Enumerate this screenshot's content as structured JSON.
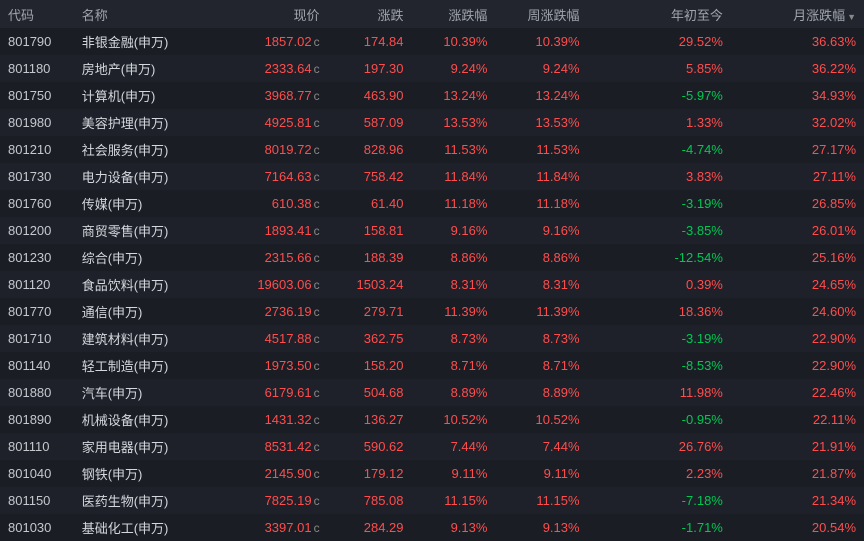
{
  "columns": [
    {
      "key": "code",
      "label": "代码",
      "align": "left"
    },
    {
      "key": "name",
      "label": "名称",
      "align": "left"
    },
    {
      "key": "price",
      "label": "现价",
      "align": "right"
    },
    {
      "key": "change",
      "label": "涨跌",
      "align": "right"
    },
    {
      "key": "change_pct",
      "label": "涨跌幅",
      "align": "right"
    },
    {
      "key": "week_pct",
      "label": "周涨跌幅",
      "align": "right"
    },
    {
      "key": "ytd_pct",
      "label": "年初至今",
      "align": "right"
    },
    {
      "key": "month_pct",
      "label": "月涨跌幅",
      "align": "right",
      "sorted": "desc"
    }
  ],
  "colors": {
    "up": "#ff4d4d",
    "down": "#00c853",
    "neutral": "#c5c8ce",
    "bg_odd": "#1a1d24",
    "bg_even": "#1e2129",
    "header_bg": "#22252d"
  },
  "rows": [
    {
      "code": "801790",
      "name": "非银金融(申万)",
      "price": "1857.02",
      "change": "174.84",
      "change_pct": "10.39%",
      "week_pct": "10.39%",
      "ytd_pct": "29.52%",
      "ytd_dir": "up",
      "month_pct": "36.63%"
    },
    {
      "code": "801180",
      "name": "房地产(申万)",
      "price": "2333.64",
      "change": "197.30",
      "change_pct": "9.24%",
      "week_pct": "9.24%",
      "ytd_pct": "5.85%",
      "ytd_dir": "up",
      "month_pct": "36.22%"
    },
    {
      "code": "801750",
      "name": "计算机(申万)",
      "price": "3968.77",
      "change": "463.90",
      "change_pct": "13.24%",
      "week_pct": "13.24%",
      "ytd_pct": "-5.97%",
      "ytd_dir": "down",
      "month_pct": "34.93%"
    },
    {
      "code": "801980",
      "name": "美容护理(申万)",
      "price": "4925.81",
      "change": "587.09",
      "change_pct": "13.53%",
      "week_pct": "13.53%",
      "ytd_pct": "1.33%",
      "ytd_dir": "up",
      "month_pct": "32.02%"
    },
    {
      "code": "801210",
      "name": "社会服务(申万)",
      "price": "8019.72",
      "change": "828.96",
      "change_pct": "11.53%",
      "week_pct": "11.53%",
      "ytd_pct": "-4.74%",
      "ytd_dir": "down",
      "month_pct": "27.17%"
    },
    {
      "code": "801730",
      "name": "电力设备(申万)",
      "price": "7164.63",
      "change": "758.42",
      "change_pct": "11.84%",
      "week_pct": "11.84%",
      "ytd_pct": "3.83%",
      "ytd_dir": "up",
      "month_pct": "27.11%"
    },
    {
      "code": "801760",
      "name": "传媒(申万)",
      "price": "610.38",
      "change": "61.40",
      "change_pct": "11.18%",
      "week_pct": "11.18%",
      "ytd_pct": "-3.19%",
      "ytd_dir": "down",
      "month_pct": "26.85%"
    },
    {
      "code": "801200",
      "name": "商贸零售(申万)",
      "price": "1893.41",
      "change": "158.81",
      "change_pct": "9.16%",
      "week_pct": "9.16%",
      "ytd_pct": "-3.85%",
      "ytd_dir": "down",
      "month_pct": "26.01%"
    },
    {
      "code": "801230",
      "name": "综合(申万)",
      "price": "2315.66",
      "change": "188.39",
      "change_pct": "8.86%",
      "week_pct": "8.86%",
      "ytd_pct": "-12.54%",
      "ytd_dir": "down",
      "month_pct": "25.16%"
    },
    {
      "code": "801120",
      "name": "食品饮料(申万)",
      "price": "19603.06",
      "change": "1503.24",
      "change_pct": "8.31%",
      "week_pct": "8.31%",
      "ytd_pct": "0.39%",
      "ytd_dir": "up",
      "month_pct": "24.65%"
    },
    {
      "code": "801770",
      "name": "通信(申万)",
      "price": "2736.19",
      "change": "279.71",
      "change_pct": "11.39%",
      "week_pct": "11.39%",
      "ytd_pct": "18.36%",
      "ytd_dir": "up",
      "month_pct": "24.60%"
    },
    {
      "code": "801710",
      "name": "建筑材料(申万)",
      "price": "4517.88",
      "change": "362.75",
      "change_pct": "8.73%",
      "week_pct": "8.73%",
      "ytd_pct": "-3.19%",
      "ytd_dir": "down",
      "month_pct": "22.90%"
    },
    {
      "code": "801140",
      "name": "轻工制造(申万)",
      "price": "1973.50",
      "change": "158.20",
      "change_pct": "8.71%",
      "week_pct": "8.71%",
      "ytd_pct": "-8.53%",
      "ytd_dir": "down",
      "month_pct": "22.90%"
    },
    {
      "code": "801880",
      "name": "汽车(申万)",
      "price": "6179.61",
      "change": "504.68",
      "change_pct": "8.89%",
      "week_pct": "8.89%",
      "ytd_pct": "11.98%",
      "ytd_dir": "up",
      "month_pct": "22.46%"
    },
    {
      "code": "801890",
      "name": "机械设备(申万)",
      "price": "1431.32",
      "change": "136.27",
      "change_pct": "10.52%",
      "week_pct": "10.52%",
      "ytd_pct": "-0.95%",
      "ytd_dir": "down",
      "month_pct": "22.11%"
    },
    {
      "code": "801110",
      "name": "家用电器(申万)",
      "price": "8531.42",
      "change": "590.62",
      "change_pct": "7.44%",
      "week_pct": "7.44%",
      "ytd_pct": "26.76%",
      "ytd_dir": "up",
      "month_pct": "21.91%"
    },
    {
      "code": "801040",
      "name": "钢铁(申万)",
      "price": "2145.90",
      "change": "179.12",
      "change_pct": "9.11%",
      "week_pct": "9.11%",
      "ytd_pct": "2.23%",
      "ytd_dir": "up",
      "month_pct": "21.87%"
    },
    {
      "code": "801150",
      "name": "医药生物(申万)",
      "price": "7825.19",
      "change": "785.08",
      "change_pct": "11.15%",
      "week_pct": "11.15%",
      "ytd_pct": "-7.18%",
      "ytd_dir": "down",
      "month_pct": "21.34%"
    },
    {
      "code": "801030",
      "name": "基础化工(申万)",
      "price": "3397.01",
      "change": "284.29",
      "change_pct": "9.13%",
      "week_pct": "9.13%",
      "ytd_pct": "-1.71%",
      "ytd_dir": "down",
      "month_pct": "20.54%"
    }
  ]
}
